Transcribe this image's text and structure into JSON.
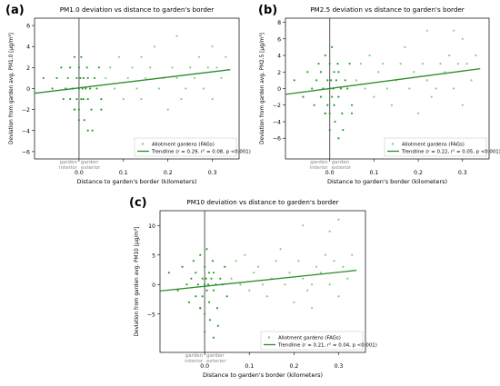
{
  "chart_data": [
    {
      "type": "scatter",
      "panel_label": "(a)",
      "title": "PM1.0 deviation vs distance to garden's border",
      "xlabel": "Distance to garden's border (kilometers)",
      "ylabel": "Deviation from garden avg. PM1.0 [µg/m³]",
      "xlim": [
        -0.1,
        0.36
      ],
      "ylim": [
        -6.7,
        6.7
      ],
      "xticks": [
        0.0,
        0.1,
        0.2,
        0.3
      ],
      "xtick_labels": [
        "0.0",
        "0.1",
        "0.2",
        "0.3"
      ],
      "yticks": [
        -6,
        -4,
        -2,
        0,
        2,
        4,
        6
      ],
      "ytick_labels": [
        "−6",
        "−4",
        "−2",
        "0",
        "2",
        "4",
        "6"
      ],
      "vline_x": 0,
      "side_labels": {
        "left": [
          "garden",
          "interior"
        ],
        "right": [
          "garden",
          "exterior"
        ]
      },
      "legend": {
        "position": "lower-right",
        "entries": [
          {
            "label": "Allotment gardens (FAGs)",
            "kind": "marker"
          },
          {
            "label": "Trendline (r = 0.29, r² = 0.08, p <0.001)",
            "kind": "line"
          }
        ]
      },
      "trendline": {
        "x": [
          -0.1,
          0.34
        ],
        "y": [
          -0.45,
          1.8
        ]
      },
      "series": [
        {
          "values_desc": "points: x = distance (km), y = deviation",
          "points": [
            [
              -0.08,
              1
            ],
            [
              -0.06,
              0
            ],
            [
              -0.05,
              1
            ],
            [
              -0.04,
              2
            ],
            [
              -0.035,
              -1
            ],
            [
              -0.03,
              0
            ],
            [
              -0.025,
              1
            ],
            [
              -0.02,
              -1
            ],
            [
              -0.02,
              2
            ],
            [
              -0.015,
              0
            ],
            [
              -0.01,
              -2
            ],
            [
              -0.01,
              3
            ],
            [
              -0.005,
              1
            ],
            [
              -0.005,
              -1
            ],
            [
              0.0,
              0
            ],
            [
              0.0,
              2
            ],
            [
              0.0,
              -2
            ],
            [
              0.003,
              1
            ],
            [
              0.005,
              -1
            ],
            [
              0.005,
              3
            ],
            [
              0.008,
              0
            ],
            [
              0.01,
              -1
            ],
            [
              0.01,
              1
            ],
            [
              0.012,
              -3
            ],
            [
              0.015,
              0
            ],
            [
              0.018,
              2
            ],
            [
              0.02,
              -1
            ],
            [
              0.02,
              1
            ],
            [
              0.025,
              0
            ],
            [
              0.028,
              -2
            ],
            [
              0.03,
              -4
            ],
            [
              0.035,
              1
            ],
            [
              0.04,
              0
            ],
            [
              0.045,
              2
            ],
            [
              0.05,
              -1
            ],
            [
              0.06,
              1
            ],
            [
              0.07,
              2
            ],
            [
              0.08,
              0
            ],
            [
              0.09,
              3
            ],
            [
              0.1,
              -1
            ],
            [
              0.11,
              1
            ],
            [
              0.12,
              2
            ],
            [
              0.13,
              0
            ],
            [
              0.14,
              -1
            ],
            [
              0.15,
              1
            ],
            [
              0.16,
              2
            ],
            [
              0.17,
              4
            ],
            [
              0.18,
              0
            ],
            [
              0.19,
              1
            ],
            [
              0.2,
              -2
            ],
            [
              0.21,
              2
            ],
            [
              0.22,
              1
            ],
            [
              0.23,
              -1
            ],
            [
              0.24,
              0
            ],
            [
              0.25,
              2
            ],
            [
              0.26,
              1
            ],
            [
              0.27,
              3
            ],
            [
              0.28,
              0
            ],
            [
              0.29,
              2
            ],
            [
              0.3,
              -1
            ],
            [
              0.31,
              2
            ],
            [
              0.32,
              1
            ],
            [
              0.33,
              3
            ],
            [
              0.22,
              5
            ],
            [
              0.05,
              -2
            ],
            [
              0.0,
              -3
            ],
            [
              -0.01,
              -2
            ],
            [
              0.02,
              -4
            ],
            [
              0.14,
              3
            ],
            [
              0.3,
              4
            ]
          ]
        }
      ]
    },
    {
      "type": "scatter",
      "panel_label": "(b)",
      "title": "PM2.5 deviation vs distance to garden's border",
      "xlabel": "Distance to garden's border (kilometers)",
      "ylabel": "Deviation from garden avg. PM2.5 [µg/m³]",
      "xlim": [
        -0.1,
        0.36
      ],
      "ylim": [
        -8.5,
        8.5
      ],
      "xticks": [
        0.0,
        0.1,
        0.2,
        0.3
      ],
      "xtick_labels": [
        "0.0",
        "0.1",
        "0.2",
        "0.3"
      ],
      "yticks": [
        -6,
        -4,
        -2,
        0,
        2,
        4,
        6,
        8
      ],
      "ytick_labels": [
        "−6",
        "−4",
        "−2",
        "0",
        "2",
        "4",
        "6",
        "8"
      ],
      "vline_x": 0,
      "side_labels": {
        "left": [
          "garden",
          "interior"
        ],
        "right": [
          "garden",
          "exterior"
        ]
      },
      "legend": {
        "position": "lower-right",
        "entries": [
          {
            "label": "Allotment gardens (FAGs)",
            "kind": "marker"
          },
          {
            "label": "Trendline (r = 0.22, r² = 0.05, p <0.001)",
            "kind": "line"
          }
        ]
      },
      "trendline": {
        "x": [
          -0.1,
          0.34
        ],
        "y": [
          -0.7,
          2.4
        ]
      },
      "series": [
        {
          "points": [
            [
              -0.08,
              1
            ],
            [
              -0.06,
              -1
            ],
            [
              -0.05,
              2
            ],
            [
              -0.04,
              0
            ],
            [
              -0.035,
              -2
            ],
            [
              -0.03,
              1
            ],
            [
              -0.025,
              3
            ],
            [
              -0.02,
              -1
            ],
            [
              -0.02,
              2
            ],
            [
              -0.015,
              0
            ],
            [
              -0.01,
              -3
            ],
            [
              -0.01,
              4
            ],
            [
              -0.005,
              1
            ],
            [
              -0.005,
              -2
            ],
            [
              0.0,
              0
            ],
            [
              0.0,
              3
            ],
            [
              0.0,
              -3
            ],
            [
              0.003,
              1
            ],
            [
              0.005,
              -1
            ],
            [
              0.005,
              5
            ],
            [
              0.008,
              0
            ],
            [
              0.01,
              -2
            ],
            [
              0.01,
              2
            ],
            [
              0.012,
              -4
            ],
            [
              0.015,
              1
            ],
            [
              0.018,
              3
            ],
            [
              0.02,
              -1
            ],
            [
              0.02,
              2
            ],
            [
              0.025,
              0
            ],
            [
              0.028,
              -3
            ],
            [
              0.03,
              -5
            ],
            [
              0.035,
              1
            ],
            [
              0.04,
              0
            ],
            [
              0.045,
              3
            ],
            [
              0.05,
              -2
            ],
            [
              0.06,
              1
            ],
            [
              0.07,
              3
            ],
            [
              0.08,
              0
            ],
            [
              0.09,
              4
            ],
            [
              0.1,
              -1
            ],
            [
              0.11,
              2
            ],
            [
              0.12,
              3
            ],
            [
              0.13,
              0
            ],
            [
              0.14,
              -2
            ],
            [
              0.15,
              1
            ],
            [
              0.16,
              3
            ],
            [
              0.17,
              5
            ],
            [
              0.18,
              0
            ],
            [
              0.19,
              2
            ],
            [
              0.2,
              -3
            ],
            [
              0.21,
              3
            ],
            [
              0.22,
              1
            ],
            [
              0.23,
              -1
            ],
            [
              0.24,
              0
            ],
            [
              0.25,
              3
            ],
            [
              0.26,
              2
            ],
            [
              0.27,
              4
            ],
            [
              0.28,
              0
            ],
            [
              0.29,
              3
            ],
            [
              0.3,
              -2
            ],
            [
              0.31,
              3
            ],
            [
              0.32,
              1
            ],
            [
              0.33,
              4
            ],
            [
              0.22,
              7
            ],
            [
              0.05,
              -3
            ],
            [
              0.0,
              -5
            ],
            [
              -0.01,
              -3
            ],
            [
              0.02,
              -6
            ],
            [
              0.3,
              6
            ],
            [
              0.28,
              7
            ]
          ]
        }
      ]
    },
    {
      "type": "scatter",
      "panel_label": "(c)",
      "title": "PM10 deviation vs distance to garden's border",
      "xlabel": "Distance to garden's border (kilometers)",
      "ylabel": "Deviation from garden avg. PM10 [µg/m³]",
      "xlim": [
        -0.1,
        0.36
      ],
      "ylim": [
        -11.5,
        12.5
      ],
      "xticks": [
        0.0,
        0.1,
        0.2,
        0.3
      ],
      "xtick_labels": [
        "0.0",
        "0.1",
        "0.2",
        "0.3"
      ],
      "yticks": [
        -5,
        0,
        5,
        10
      ],
      "ytick_labels": [
        "−5",
        "0",
        "5",
        "10"
      ],
      "vline_x": 0,
      "side_labels": {
        "left": [
          "garden",
          "interior"
        ],
        "right": [
          "garden",
          "exterior"
        ]
      },
      "legend": {
        "position": "lower-right",
        "entries": [
          {
            "label": "Allotment gardens (FAGs)",
            "kind": "marker"
          },
          {
            "label": "Trendline (r = 0.21, r² = 0.04, p <0.001)",
            "kind": "line"
          }
        ]
      },
      "trendline": {
        "x": [
          -0.1,
          0.34
        ],
        "y": [
          -1.1,
          2.4
        ]
      },
      "series": [
        {
          "points": [
            [
              -0.08,
              2
            ],
            [
              -0.06,
              -1
            ],
            [
              -0.05,
              3
            ],
            [
              -0.04,
              0
            ],
            [
              -0.035,
              -3
            ],
            [
              -0.03,
              1
            ],
            [
              -0.025,
              4
            ],
            [
              -0.02,
              -2
            ],
            [
              -0.02,
              2
            ],
            [
              -0.015,
              0
            ],
            [
              -0.01,
              -4
            ],
            [
              -0.01,
              5
            ],
            [
              -0.005,
              1
            ],
            [
              -0.005,
              -2
            ],
            [
              0.0,
              0
            ],
            [
              0.0,
              3
            ],
            [
              0.0,
              -5
            ],
            [
              0.003,
              1
            ],
            [
              0.005,
              -1
            ],
            [
              0.005,
              6
            ],
            [
              0.008,
              0
            ],
            [
              0.01,
              -3
            ],
            [
              0.01,
              2
            ],
            [
              0.012,
              -6
            ],
            [
              0.015,
              1
            ],
            [
              0.018,
              4
            ],
            [
              0.02,
              -1
            ],
            [
              0.02,
              2
            ],
            [
              0.025,
              0
            ],
            [
              0.028,
              -4
            ],
            [
              0.03,
              -7
            ],
            [
              0.035,
              1
            ],
            [
              0.04,
              0
            ],
            [
              0.045,
              3
            ],
            [
              0.05,
              -2
            ],
            [
              0.06,
              1
            ],
            [
              0.07,
              4
            ],
            [
              0.08,
              0
            ],
            [
              0.09,
              5
            ],
            [
              0.1,
              -1
            ],
            [
              0.11,
              2
            ],
            [
              0.12,
              3
            ],
            [
              0.13,
              0
            ],
            [
              0.14,
              -2
            ],
            [
              0.15,
              1
            ],
            [
              0.16,
              4
            ],
            [
              0.17,
              6
            ],
            [
              0.18,
              0
            ],
            [
              0.19,
              2
            ],
            [
              0.2,
              -3
            ],
            [
              0.21,
              4
            ],
            [
              0.22,
              1
            ],
            [
              0.23,
              -1
            ],
            [
              0.24,
              0
            ],
            [
              0.25,
              3
            ],
            [
              0.26,
              2
            ],
            [
              0.27,
              5
            ],
            [
              0.28,
              0
            ],
            [
              0.29,
              4
            ],
            [
              0.3,
              -2
            ],
            [
              0.31,
              3
            ],
            [
              0.32,
              1
            ],
            [
              0.33,
              5
            ],
            [
              0.22,
              10
            ],
            [
              0.3,
              11
            ],
            [
              0.0,
              -8
            ],
            [
              -0.01,
              -4
            ],
            [
              0.02,
              -9
            ],
            [
              0.28,
              9
            ],
            [
              0.24,
              -4
            ]
          ]
        }
      ]
    }
  ],
  "colors": {
    "points": "#2ca02c",
    "points_light": "#7fd37f",
    "trend": "#2e8b2e",
    "vline": "#555555",
    "axis": "#000000",
    "side_label": "#888888"
  }
}
